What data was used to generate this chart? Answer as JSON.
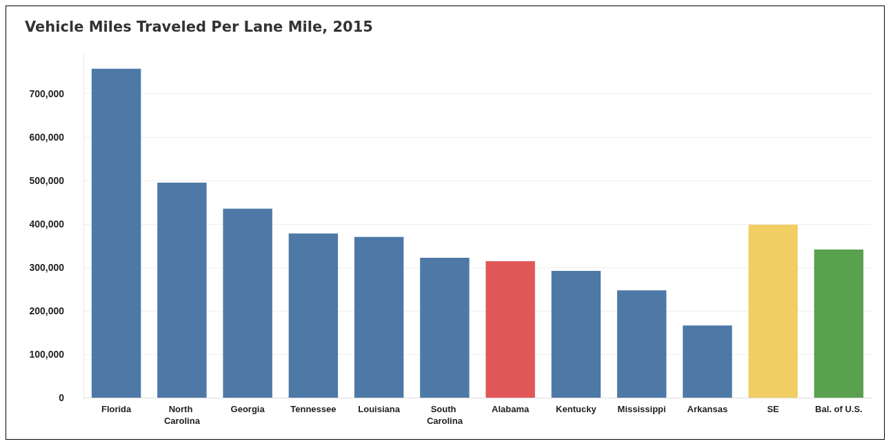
{
  "chart_data": {
    "type": "bar",
    "title": "Vehicle Miles Traveled Per Lane Mile, 2015",
    "categories": [
      "Florida",
      "North Carolina",
      "Georgia",
      "Tennessee",
      "Louisiana",
      "South Carolina",
      "Alabama",
      "Kentucky",
      "Mississippi",
      "Arkansas",
      "SE",
      "Bal. of U.S."
    ],
    "values": [
      757000,
      495000,
      435000,
      378000,
      370000,
      322000,
      314000,
      292000,
      247000,
      166000,
      398000,
      341000
    ],
    "colors": [
      "#4e79a7",
      "#4e79a7",
      "#4e79a7",
      "#4e79a7",
      "#4e79a7",
      "#4e79a7",
      "#e15759",
      "#4e79a7",
      "#4e79a7",
      "#4e79a7",
      "#f1ce63",
      "#59a14f"
    ],
    "ylim": [
      0,
      790000
    ],
    "yticks": [
      0,
      {
        "value": 100000,
        "label": "100,000"
      },
      {
        "value": 200000,
        "label": "200,000"
      },
      {
        "value": 300000,
        "label": "300,000"
      },
      {
        "value": 400000,
        "label": "400,000"
      },
      {
        "value": 500000,
        "label": "500,000"
      },
      {
        "value": 600000,
        "label": "600,000"
      },
      {
        "value": 700000,
        "label": "700,000"
      }
    ],
    "grid": "y"
  }
}
